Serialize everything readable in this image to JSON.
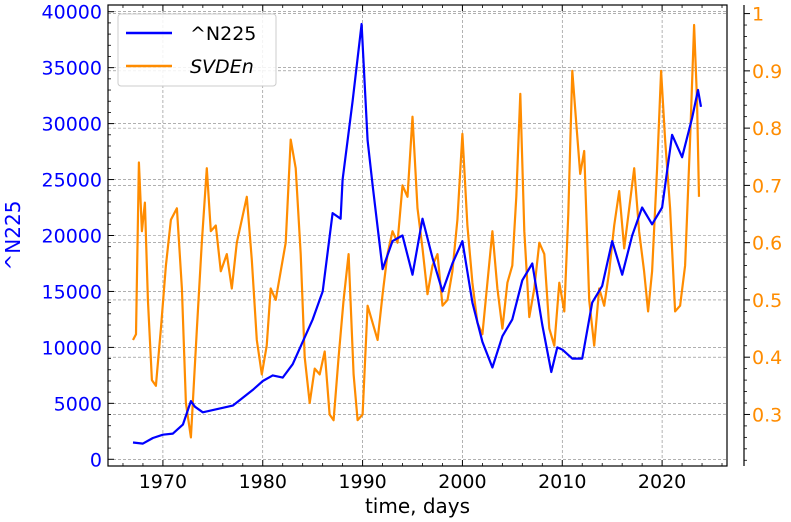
{
  "chart_data": {
    "type": "line",
    "xlabel": "time, days",
    "ylabel_left": "^N225",
    "xlim": [
      1964.5,
      2026.5
    ],
    "ylim_left": [
      -600,
      40600
    ],
    "ylim_right": [
      0.21,
      1.015
    ],
    "x_ticks": [
      1970,
      1980,
      1990,
      2000,
      2010,
      2020
    ],
    "y_ticks_left": [
      0,
      5000,
      10000,
      15000,
      20000,
      25000,
      30000,
      35000,
      40000
    ],
    "y_ticks_right": [
      0.3,
      0.4,
      0.5,
      0.6,
      0.7,
      0.8,
      0.9,
      1.0
    ],
    "grid": true,
    "legend_position": "top-left",
    "colors": {
      "n225": "#0000ff",
      "svden": "#ff8c00",
      "grid": "#808080",
      "axis": "#000000"
    },
    "series": [
      {
        "name": "^N225",
        "axis": "left",
        "color": "#0000ff",
        "points": [
          [
            1967.0,
            1500
          ],
          [
            1968.0,
            1400
          ],
          [
            1969.0,
            1900
          ],
          [
            1970.0,
            2200
          ],
          [
            1971.0,
            2300
          ],
          [
            1972.0,
            3100
          ],
          [
            1972.8,
            5200
          ],
          [
            1973.2,
            4700
          ],
          [
            1974.0,
            4200
          ],
          [
            1975.0,
            4400
          ],
          [
            1976.0,
            4600
          ],
          [
            1977.0,
            4800
          ],
          [
            1978.0,
            5500
          ],
          [
            1979.0,
            6200
          ],
          [
            1980.0,
            7000
          ],
          [
            1981.0,
            7500
          ],
          [
            1982.0,
            7300
          ],
          [
            1983.0,
            8500
          ],
          [
            1984.0,
            10500
          ],
          [
            1985.0,
            12500
          ],
          [
            1986.0,
            15000
          ],
          [
            1987.0,
            22000
          ],
          [
            1987.8,
            21500
          ],
          [
            1988.0,
            25000
          ],
          [
            1989.0,
            32000
          ],
          [
            1989.9,
            38900
          ],
          [
            1990.5,
            28500
          ],
          [
            1991.0,
            24500
          ],
          [
            1992.0,
            17000
          ],
          [
            1993.0,
            19500
          ],
          [
            1994.0,
            20000
          ],
          [
            1995.0,
            16500
          ],
          [
            1996.0,
            21500
          ],
          [
            1997.0,
            18000
          ],
          [
            1998.0,
            15000
          ],
          [
            1999.0,
            17500
          ],
          [
            2000.0,
            19500
          ],
          [
            2001.0,
            14000
          ],
          [
            2002.0,
            10500
          ],
          [
            2003.0,
            8200
          ],
          [
            2004.0,
            11000
          ],
          [
            2005.0,
            12500
          ],
          [
            2006.0,
            16000
          ],
          [
            2007.0,
            17500
          ],
          [
            2008.0,
            12000
          ],
          [
            2008.9,
            7800
          ],
          [
            2009.5,
            10000
          ],
          [
            2010.0,
            9800
          ],
          [
            2011.0,
            9000
          ],
          [
            2012.0,
            9000
          ],
          [
            2013.0,
            14000
          ],
          [
            2014.0,
            15500
          ],
          [
            2015.0,
            19500
          ],
          [
            2016.0,
            16500
          ],
          [
            2017.0,
            20000
          ],
          [
            2018.0,
            22500
          ],
          [
            2019.0,
            21000
          ],
          [
            2020.0,
            22500
          ],
          [
            2021.0,
            29000
          ],
          [
            2022.0,
            27000
          ],
          [
            2023.0,
            30500
          ],
          [
            2023.6,
            33000
          ],
          [
            2023.9,
            31500
          ]
        ]
      },
      {
        "name": "SVDEn",
        "axis": "right",
        "color": "#ff8c00",
        "points": [
          [
            1967.0,
            0.43
          ],
          [
            1967.3,
            0.44
          ],
          [
            1967.6,
            0.74
          ],
          [
            1967.9,
            0.62
          ],
          [
            1968.2,
            0.67
          ],
          [
            1968.5,
            0.5
          ],
          [
            1968.9,
            0.36
          ],
          [
            1969.3,
            0.35
          ],
          [
            1969.8,
            0.45
          ],
          [
            1970.3,
            0.56
          ],
          [
            1970.8,
            0.64
          ],
          [
            1971.4,
            0.66
          ],
          [
            1971.9,
            0.52
          ],
          [
            1972.3,
            0.32
          ],
          [
            1972.8,
            0.26
          ],
          [
            1973.4,
            0.45
          ],
          [
            1973.9,
            0.6
          ],
          [
            1974.4,
            0.73
          ],
          [
            1974.8,
            0.62
          ],
          [
            1975.3,
            0.63
          ],
          [
            1975.8,
            0.55
          ],
          [
            1976.4,
            0.58
          ],
          [
            1976.9,
            0.52
          ],
          [
            1977.4,
            0.6
          ],
          [
            1977.9,
            0.64
          ],
          [
            1978.4,
            0.68
          ],
          [
            1978.9,
            0.57
          ],
          [
            1979.4,
            0.43
          ],
          [
            1979.9,
            0.37
          ],
          [
            1980.4,
            0.42
          ],
          [
            1980.8,
            0.52
          ],
          [
            1981.3,
            0.5
          ],
          [
            1981.8,
            0.55
          ],
          [
            1982.3,
            0.6
          ],
          [
            1982.8,
            0.78
          ],
          [
            1983.3,
            0.73
          ],
          [
            1983.8,
            0.58
          ],
          [
            1984.2,
            0.4
          ],
          [
            1984.7,
            0.32
          ],
          [
            1985.2,
            0.38
          ],
          [
            1985.7,
            0.37
          ],
          [
            1986.2,
            0.41
          ],
          [
            1986.7,
            0.3
          ],
          [
            1987.1,
            0.29
          ],
          [
            1987.6,
            0.4
          ],
          [
            1988.1,
            0.5
          ],
          [
            1988.6,
            0.58
          ],
          [
            1989.1,
            0.37
          ],
          [
            1989.5,
            0.29
          ],
          [
            1990.0,
            0.3
          ],
          [
            1990.5,
            0.49
          ],
          [
            1991.0,
            0.46
          ],
          [
            1991.5,
            0.43
          ],
          [
            1992.0,
            0.51
          ],
          [
            1992.5,
            0.58
          ],
          [
            1993.0,
            0.62
          ],
          [
            1993.5,
            0.6
          ],
          [
            1994.0,
            0.7
          ],
          [
            1994.5,
            0.68
          ],
          [
            1995.0,
            0.82
          ],
          [
            1995.5,
            0.66
          ],
          [
            1996.0,
            0.59
          ],
          [
            1996.5,
            0.51
          ],
          [
            1997.0,
            0.56
          ],
          [
            1997.5,
            0.58
          ],
          [
            1998.0,
            0.49
          ],
          [
            1998.5,
            0.5
          ],
          [
            1999.0,
            0.55
          ],
          [
            1999.5,
            0.64
          ],
          [
            2000.0,
            0.79
          ],
          [
            2000.5,
            0.63
          ],
          [
            2001.0,
            0.53
          ],
          [
            2001.5,
            0.46
          ],
          [
            2002.0,
            0.44
          ],
          [
            2002.5,
            0.53
          ],
          [
            2003.0,
            0.62
          ],
          [
            2003.5,
            0.52
          ],
          [
            2004.0,
            0.45
          ],
          [
            2004.5,
            0.53
          ],
          [
            2005.0,
            0.56
          ],
          [
            2005.4,
            0.68
          ],
          [
            2005.8,
            0.86
          ],
          [
            2006.2,
            0.62
          ],
          [
            2006.7,
            0.47
          ],
          [
            2007.2,
            0.52
          ],
          [
            2007.7,
            0.6
          ],
          [
            2008.2,
            0.58
          ],
          [
            2008.7,
            0.45
          ],
          [
            2009.2,
            0.42
          ],
          [
            2009.7,
            0.53
          ],
          [
            2010.2,
            0.48
          ],
          [
            2010.6,
            0.65
          ],
          [
            2011.0,
            0.9
          ],
          [
            2011.4,
            0.81
          ],
          [
            2011.8,
            0.72
          ],
          [
            2012.2,
            0.76
          ],
          [
            2012.7,
            0.5
          ],
          [
            2013.2,
            0.42
          ],
          [
            2013.7,
            0.52
          ],
          [
            2014.2,
            0.49
          ],
          [
            2014.7,
            0.55
          ],
          [
            2015.2,
            0.63
          ],
          [
            2015.7,
            0.69
          ],
          [
            2016.2,
            0.59
          ],
          [
            2016.7,
            0.66
          ],
          [
            2017.2,
            0.73
          ],
          [
            2017.7,
            0.62
          ],
          [
            2018.2,
            0.55
          ],
          [
            2018.6,
            0.48
          ],
          [
            2019.0,
            0.55
          ],
          [
            2019.5,
            0.73
          ],
          [
            2019.9,
            0.9
          ],
          [
            2020.3,
            0.78
          ],
          [
            2020.8,
            0.66
          ],
          [
            2021.3,
            0.48
          ],
          [
            2021.8,
            0.49
          ],
          [
            2022.3,
            0.56
          ],
          [
            2022.8,
            0.78
          ],
          [
            2023.2,
            0.98
          ],
          [
            2023.5,
            0.85
          ],
          [
            2023.7,
            0.68
          ]
        ]
      }
    ]
  }
}
